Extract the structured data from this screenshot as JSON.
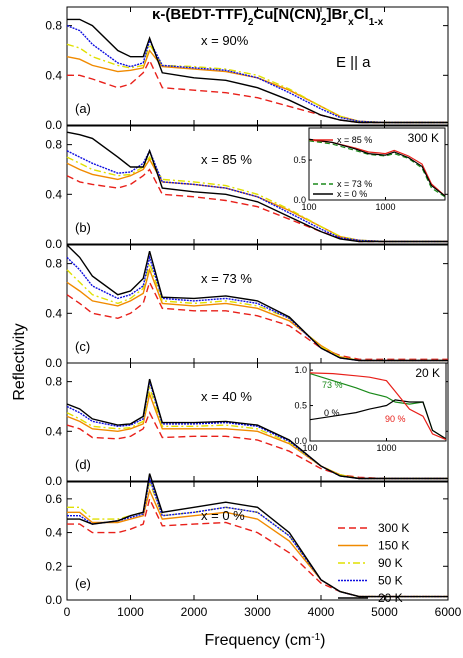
{
  "figure": {
    "title_prefix": "κ-(BEDT-TTF)",
    "title_sub1": "2",
    "title_mid": "Cu[N(CN)",
    "title_sub2": "2",
    "title_mid2": "]Br",
    "title_sub3": "x",
    "title_mid3": "Cl",
    "title_sub4": "1-x",
    "polarization": "E || a",
    "xlabel": "Frequency (cm",
    "xlabel_sup": "-1",
    "xlabel_end": ")",
    "ylabel": "Reflectivity",
    "xticks": [
      "0",
      "1000",
      "2000",
      "3000",
      "4000",
      "5000",
      "6000"
    ],
    "legend": [
      {
        "label": "300 K",
        "color": "#e8201a",
        "dash": "7,4"
      },
      {
        "label": "150 K",
        "color": "#f08a00",
        "dash": ""
      },
      {
        "label": "90 K",
        "color": "#e0e000",
        "dash": "7,3,2,3"
      },
      {
        "label": "50 K",
        "color": "#1010e0",
        "dash": "2,1"
      },
      {
        "label": "20 K",
        "color": "#000000",
        "dash": ""
      }
    ],
    "panels": [
      {
        "tag": "(a)",
        "xtext": "x = 90%",
        "yticks": [
          "0.0",
          "0.4",
          "0.8"
        ]
      },
      {
        "tag": "(b)",
        "xtext": "x = 85 %",
        "yticks": [
          "0.0",
          "0.4",
          "0.8"
        ]
      },
      {
        "tag": "(c)",
        "xtext": "x = 73 %",
        "yticks": [
          "0.0",
          "0.4",
          "0.8"
        ]
      },
      {
        "tag": "(d)",
        "xtext": "x = 40 %",
        "yticks": [
          "0.0",
          "0.4",
          "0.8"
        ]
      },
      {
        "tag": "(e)",
        "xtext": "x = 0 %",
        "yticks": [
          "0.0",
          "0.2",
          "0.4",
          "0.6"
        ]
      }
    ],
    "inset1": {
      "title": "300 K",
      "xticks": [
        "100",
        "1000"
      ],
      "yticks": [
        "0.0",
        "0.5"
      ],
      "legend": [
        {
          "label": "x = 85 %",
          "color": "#e8201a",
          "dash": ""
        },
        {
          "label": "x = 73 %",
          "color": "#1a8a1a",
          "dash": "5,3"
        },
        {
          "label": "x =   0 %",
          "color": "#000000",
          "dash": ""
        }
      ]
    },
    "inset2": {
      "title": "20 K",
      "xticks": [
        "100",
        "1000"
      ],
      "yticks": [
        "0.0",
        "0.5",
        "1.0"
      ],
      "labels": [
        {
          "text": "73 %",
          "color": "#1a8a1a"
        },
        {
          "text": "0 %",
          "color": "#000000"
        },
        {
          "text": "90 %",
          "color": "#e8201a"
        }
      ]
    }
  },
  "chart_data": {
    "type": "line",
    "title": "κ-(BEDT-TTF)2Cu[N(CN)2]BrxCl1-x",
    "xlabel": "Frequency (cm-1)",
    "ylabel": "Reflectivity",
    "xlim": [
      0,
      6000
    ],
    "panels": [
      {
        "x_percent": 90,
        "ylim": [
          0.0,
          0.95
        ],
        "x": [
          0,
          200,
          400,
          800,
          1000,
          1200,
          1300,
          1500,
          2000,
          2500,
          3000,
          3500,
          4000,
          4300,
          4600,
          5000,
          5500,
          6000
        ],
        "series": [
          {
            "name": "300 K",
            "values": [
              0.4,
              0.4,
              0.37,
              0.3,
              0.33,
              0.42,
              0.52,
              0.3,
              0.28,
              0.26,
              0.22,
              0.15,
              0.08,
              0.04,
              0.02,
              0.02,
              0.02,
              0.02
            ]
          },
          {
            "name": "150 K",
            "values": [
              0.55,
              0.53,
              0.48,
              0.43,
              0.44,
              0.46,
              0.6,
              0.47,
              0.45,
              0.43,
              0.38,
              0.28,
              0.15,
              0.07,
              0.03,
              0.02,
              0.02,
              0.02
            ]
          },
          {
            "name": "90 K",
            "values": [
              0.65,
              0.62,
              0.55,
              0.48,
              0.46,
              0.48,
              0.65,
              0.48,
              0.47,
              0.45,
              0.4,
              0.29,
              0.15,
              0.07,
              0.03,
              0.02,
              0.02,
              0.02
            ]
          },
          {
            "name": "50 K",
            "values": [
              0.8,
              0.76,
              0.65,
              0.5,
              0.47,
              0.5,
              0.68,
              0.48,
              0.46,
              0.44,
              0.38,
              0.26,
              0.13,
              0.06,
              0.03,
              0.02,
              0.02,
              0.02
            ]
          },
          {
            "name": "20 K",
            "values": [
              0.85,
              0.85,
              0.8,
              0.6,
              0.55,
              0.55,
              0.7,
              0.42,
              0.38,
              0.36,
              0.3,
              0.2,
              0.08,
              0.04,
              0.02,
              0.02,
              0.02,
              0.02
            ]
          }
        ]
      },
      {
        "x_percent": 85,
        "ylim": [
          0.0,
          0.95
        ],
        "x": [
          0,
          200,
          400,
          800,
          1000,
          1200,
          1300,
          1500,
          2000,
          2500,
          3000,
          3500,
          4000,
          4300,
          4600,
          5000,
          5500,
          6000
        ],
        "series": [
          {
            "name": "300 K",
            "values": [
              0.55,
              0.5,
              0.48,
              0.45,
              0.48,
              0.55,
              0.6,
              0.4,
              0.38,
              0.35,
              0.3,
              0.2,
              0.1,
              0.05,
              0.02,
              0.02,
              0.02,
              0.02
            ]
          },
          {
            "name": "150 K",
            "values": [
              0.65,
              0.6,
              0.56,
              0.52,
              0.55,
              0.6,
              0.68,
              0.5,
              0.48,
              0.45,
              0.38,
              0.27,
              0.14,
              0.06,
              0.03,
              0.02,
              0.02,
              0.02
            ]
          },
          {
            "name": "90 K",
            "values": [
              0.7,
              0.65,
              0.6,
              0.55,
              0.56,
              0.62,
              0.7,
              0.52,
              0.5,
              0.47,
              0.4,
              0.28,
              0.14,
              0.06,
              0.03,
              0.02,
              0.02,
              0.02
            ]
          },
          {
            "name": "50 K",
            "values": [
              0.75,
              0.7,
              0.65,
              0.57,
              0.58,
              0.65,
              0.75,
              0.5,
              0.48,
              0.45,
              0.38,
              0.25,
              0.12,
              0.05,
              0.03,
              0.02,
              0.02,
              0.02
            ]
          },
          {
            "name": "20 K",
            "values": [
              0.9,
              0.88,
              0.85,
              0.7,
              0.62,
              0.62,
              0.75,
              0.45,
              0.42,
              0.4,
              0.34,
              0.22,
              0.1,
              0.04,
              0.02,
              0.02,
              0.02,
              0.02
            ]
          }
        ]
      },
      {
        "x_percent": 73,
        "ylim": [
          0.0,
          0.95
        ],
        "x": [
          0,
          200,
          400,
          800,
          1000,
          1200,
          1300,
          1500,
          2000,
          2500,
          3000,
          3500,
          4000,
          4300,
          4600,
          5000,
          5500,
          6000
        ],
        "series": [
          {
            "name": "300 K",
            "values": [
              0.55,
              0.48,
              0.4,
              0.36,
              0.4,
              0.48,
              0.65,
              0.44,
              0.42,
              0.42,
              0.38,
              0.3,
              0.12,
              0.06,
              0.03,
              0.03,
              0.03,
              0.03
            ]
          },
          {
            "name": "150 K",
            "values": [
              0.65,
              0.58,
              0.5,
              0.46,
              0.5,
              0.56,
              0.75,
              0.48,
              0.46,
              0.48,
              0.44,
              0.34,
              0.14,
              0.05,
              0.02,
              0.02,
              0.02,
              0.02
            ]
          },
          {
            "name": "90 K",
            "values": [
              0.75,
              0.65,
              0.55,
              0.48,
              0.52,
              0.6,
              0.8,
              0.5,
              0.48,
              0.5,
              0.46,
              0.36,
              0.13,
              0.05,
              0.02,
              0.02,
              0.02,
              0.02
            ]
          },
          {
            "name": "50 K",
            "values": [
              0.85,
              0.75,
              0.62,
              0.52,
              0.55,
              0.62,
              0.85,
              0.52,
              0.5,
              0.52,
              0.48,
              0.36,
              0.12,
              0.04,
              0.02,
              0.02,
              0.02,
              0.02
            ]
          },
          {
            "name": "20 K",
            "values": [
              0.95,
              0.85,
              0.7,
              0.55,
              0.58,
              0.68,
              0.9,
              0.53,
              0.52,
              0.54,
              0.5,
              0.37,
              0.12,
              0.04,
              0.02,
              0.02,
              0.02,
              0.02
            ]
          }
        ]
      },
      {
        "x_percent": 40,
        "ylim": [
          0.0,
          0.95
        ],
        "x": [
          0,
          200,
          400,
          800,
          1000,
          1200,
          1300,
          1500,
          2000,
          2500,
          3000,
          3500,
          4000,
          4300,
          4600,
          5000,
          5500,
          6000
        ],
        "series": [
          {
            "name": "300 K",
            "values": [
              0.45,
              0.42,
              0.35,
              0.34,
              0.36,
              0.42,
              0.55,
              0.35,
              0.36,
              0.36,
              0.33,
              0.24,
              0.1,
              0.05,
              0.03,
              0.02,
              0.02,
              0.02
            ]
          },
          {
            "name": "150 K",
            "values": [
              0.52,
              0.48,
              0.42,
              0.4,
              0.42,
              0.46,
              0.7,
              0.42,
              0.42,
              0.42,
              0.4,
              0.3,
              0.12,
              0.05,
              0.02,
              0.02,
              0.02,
              0.02
            ]
          },
          {
            "name": "90 K",
            "values": [
              0.55,
              0.5,
              0.44,
              0.42,
              0.43,
              0.48,
              0.75,
              0.44,
              0.44,
              0.45,
              0.42,
              0.31,
              0.12,
              0.05,
              0.02,
              0.02,
              0.02,
              0.02
            ]
          },
          {
            "name": "50 K",
            "values": [
              0.6,
              0.55,
              0.48,
              0.44,
              0.45,
              0.5,
              0.8,
              0.46,
              0.46,
              0.47,
              0.44,
              0.32,
              0.12,
              0.04,
              0.02,
              0.02,
              0.02,
              0.02
            ]
          },
          {
            "name": "20 K",
            "values": [
              0.62,
              0.58,
              0.5,
              0.45,
              0.46,
              0.52,
              0.82,
              0.47,
              0.47,
              0.48,
              0.45,
              0.33,
              0.12,
              0.04,
              0.02,
              0.02,
              0.02,
              0.02
            ]
          }
        ]
      },
      {
        "x_percent": 0,
        "ylim": [
          0.0,
          0.7
        ],
        "x": [
          0,
          200,
          400,
          800,
          1000,
          1200,
          1300,
          1500,
          2000,
          2500,
          3000,
          3500,
          4000,
          4300,
          4600,
          5000,
          5500,
          6000
        ],
        "series": [
          {
            "name": "300 K",
            "values": [
              0.45,
              0.45,
              0.4,
              0.4,
              0.42,
              0.45,
              0.6,
              0.44,
              0.45,
              0.46,
              0.4,
              0.28,
              0.1,
              0.05,
              0.02,
              0.02,
              0.02,
              0.02
            ]
          },
          {
            "name": "150 K",
            "values": [
              0.52,
              0.52,
              0.46,
              0.46,
              0.48,
              0.5,
              0.65,
              0.48,
              0.5,
              0.52,
              0.48,
              0.35,
              0.12,
              0.05,
              0.02,
              0.02,
              0.02,
              0.02
            ]
          },
          {
            "name": "90 K",
            "values": [
              0.55,
              0.55,
              0.48,
              0.48,
              0.5,
              0.52,
              0.7,
              0.5,
              0.52,
              0.55,
              0.52,
              0.38,
              0.12,
              0.05,
              0.02,
              0.02,
              0.02,
              0.02
            ]
          },
          {
            "name": "50 K",
            "values": [
              0.5,
              0.5,
              0.45,
              0.47,
              0.49,
              0.51,
              0.72,
              0.5,
              0.52,
              0.55,
              0.52,
              0.38,
              0.12,
              0.05,
              0.02,
              0.02,
              0.02,
              0.02
            ]
          },
          {
            "name": "20 K",
            "values": [
              0.48,
              0.48,
              0.45,
              0.47,
              0.5,
              0.52,
              0.75,
              0.52,
              0.55,
              0.58,
              0.55,
              0.4,
              0.12,
              0.05,
              0.02,
              0.02,
              0.02,
              0.02
            ]
          }
        ]
      }
    ],
    "insets": [
      {
        "panel": "(b)",
        "title": "300 K",
        "xscale": "log",
        "xlim": [
          100,
          6000
        ],
        "ylim": [
          0.0,
          0.9
        ],
        "x": [
          100,
          200,
          400,
          600,
          1000,
          1300,
          2000,
          3000,
          4000,
          6000
        ],
        "series": [
          {
            "name": "x = 85 %",
            "values": [
              0.75,
              0.72,
              0.65,
              0.6,
              0.58,
              0.62,
              0.55,
              0.45,
              0.2,
              0.05
            ]
          },
          {
            "name": "x = 73 %",
            "values": [
              0.74,
              0.7,
              0.62,
              0.57,
              0.55,
              0.58,
              0.52,
              0.4,
              0.15,
              0.04
            ]
          },
          {
            "name": "x = 0 %",
            "values": [
              0.76,
              0.72,
              0.64,
              0.58,
              0.56,
              0.6,
              0.53,
              0.42,
              0.18,
              0.05
            ]
          }
        ]
      },
      {
        "panel": "(d)",
        "title": "20 K",
        "xscale": "log",
        "xlim": [
          100,
          6000
        ],
        "ylim": [
          0.0,
          1.1
        ],
        "x": [
          100,
          200,
          400,
          600,
          1000,
          1300,
          2000,
          3000,
          4000,
          6000
        ],
        "series": [
          {
            "name": "73 %",
            "values": [
              0.95,
              0.85,
              0.75,
              0.68,
              0.62,
              0.55,
              0.52,
              0.55,
              0.15,
              0.03
            ]
          },
          {
            "name": "0 %",
            "values": [
              0.3,
              0.35,
              0.4,
              0.45,
              0.5,
              0.58,
              0.55,
              0.55,
              0.15,
              0.03
            ]
          },
          {
            "name": "90 %",
            "values": [
              0.96,
              0.95,
              0.92,
              0.9,
              0.85,
              0.7,
              0.45,
              0.35,
              0.1,
              0.02
            ]
          }
        ]
      }
    ]
  }
}
